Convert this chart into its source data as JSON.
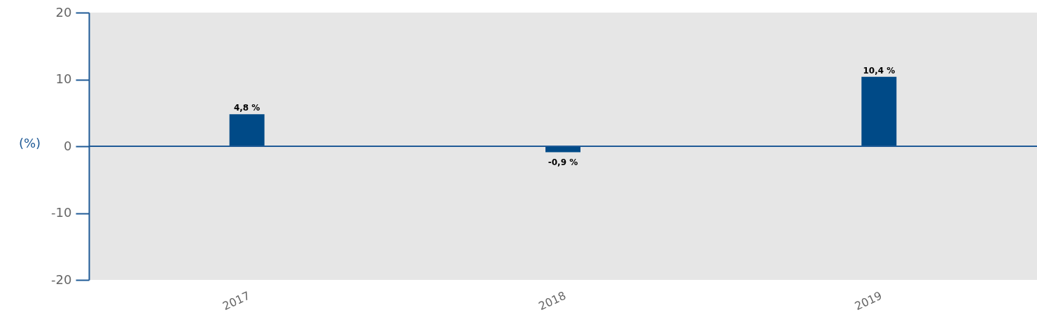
{
  "chart_data": {
    "type": "bar",
    "ylabel": "(%)",
    "categories": [
      "2017",
      "2018",
      "2019"
    ],
    "values": [
      4.8,
      -0.9,
      10.4
    ],
    "value_labels": [
      "4,8 %",
      "-0,9 %",
      "10,4 %"
    ],
    "color": "#004a87",
    "ylim": [
      -20,
      20
    ],
    "yticks": [
      -20,
      -10,
      0,
      10,
      20
    ],
    "ref_lines": [
      {
        "axis": "y",
        "value": 0,
        "color": "#1f5a96"
      }
    ],
    "grid": false
  }
}
